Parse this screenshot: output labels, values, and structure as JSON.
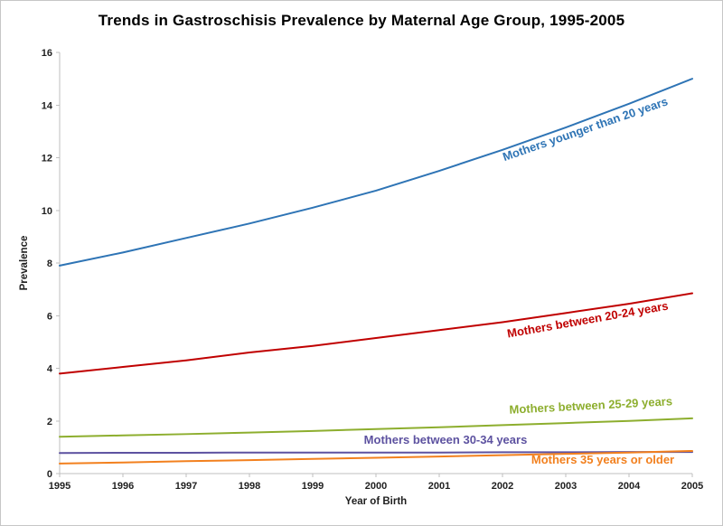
{
  "page": {
    "background_color": "#ffffff",
    "border_color": "#c6c6c6"
  },
  "chart_data": {
    "type": "line",
    "title": "Trends in Gastroschisis Prevalence by Maternal Age Group, 1995-2005",
    "xlabel": "Year of Birth",
    "ylabel": "Prevalence",
    "x": [
      1995,
      1996,
      1997,
      1998,
      1999,
      2000,
      2001,
      2002,
      2003,
      2004,
      2005
    ],
    "ylim": [
      0,
      16
    ],
    "ytick_step": 2,
    "grid": false,
    "legend_position": "inline-colored-labels-next-to-lines",
    "axis_color": "#bfbfbf",
    "series": [
      {
        "name": "Mothers younger than 20 years",
        "color": "#2e74b5",
        "values": [
          7.9,
          8.4,
          8.95,
          9.5,
          10.1,
          10.75,
          11.5,
          12.3,
          13.15,
          14.05,
          15.0
        ]
      },
      {
        "name": "Mothers between 20-24 years",
        "color": "#c00000",
        "values": [
          3.8,
          4.05,
          4.3,
          4.6,
          4.85,
          5.15,
          5.45,
          5.75,
          6.1,
          6.45,
          6.85
        ]
      },
      {
        "name": "Mothers between 25-29 years",
        "color": "#8dae2e",
        "values": [
          1.4,
          1.45,
          1.5,
          1.56,
          1.62,
          1.69,
          1.76,
          1.84,
          1.92,
          2.0,
          2.1
        ]
      },
      {
        "name": "Mothers between 30-34 years",
        "color": "#5d52a0",
        "values": [
          0.78,
          0.79,
          0.79,
          0.8,
          0.8,
          0.8,
          0.8,
          0.81,
          0.81,
          0.82,
          0.82
        ]
      },
      {
        "name": "Mothers 35 years or older",
        "color": "#f2801e",
        "values": [
          0.38,
          0.42,
          0.47,
          0.51,
          0.56,
          0.6,
          0.65,
          0.7,
          0.75,
          0.8,
          0.86
        ]
      }
    ]
  }
}
